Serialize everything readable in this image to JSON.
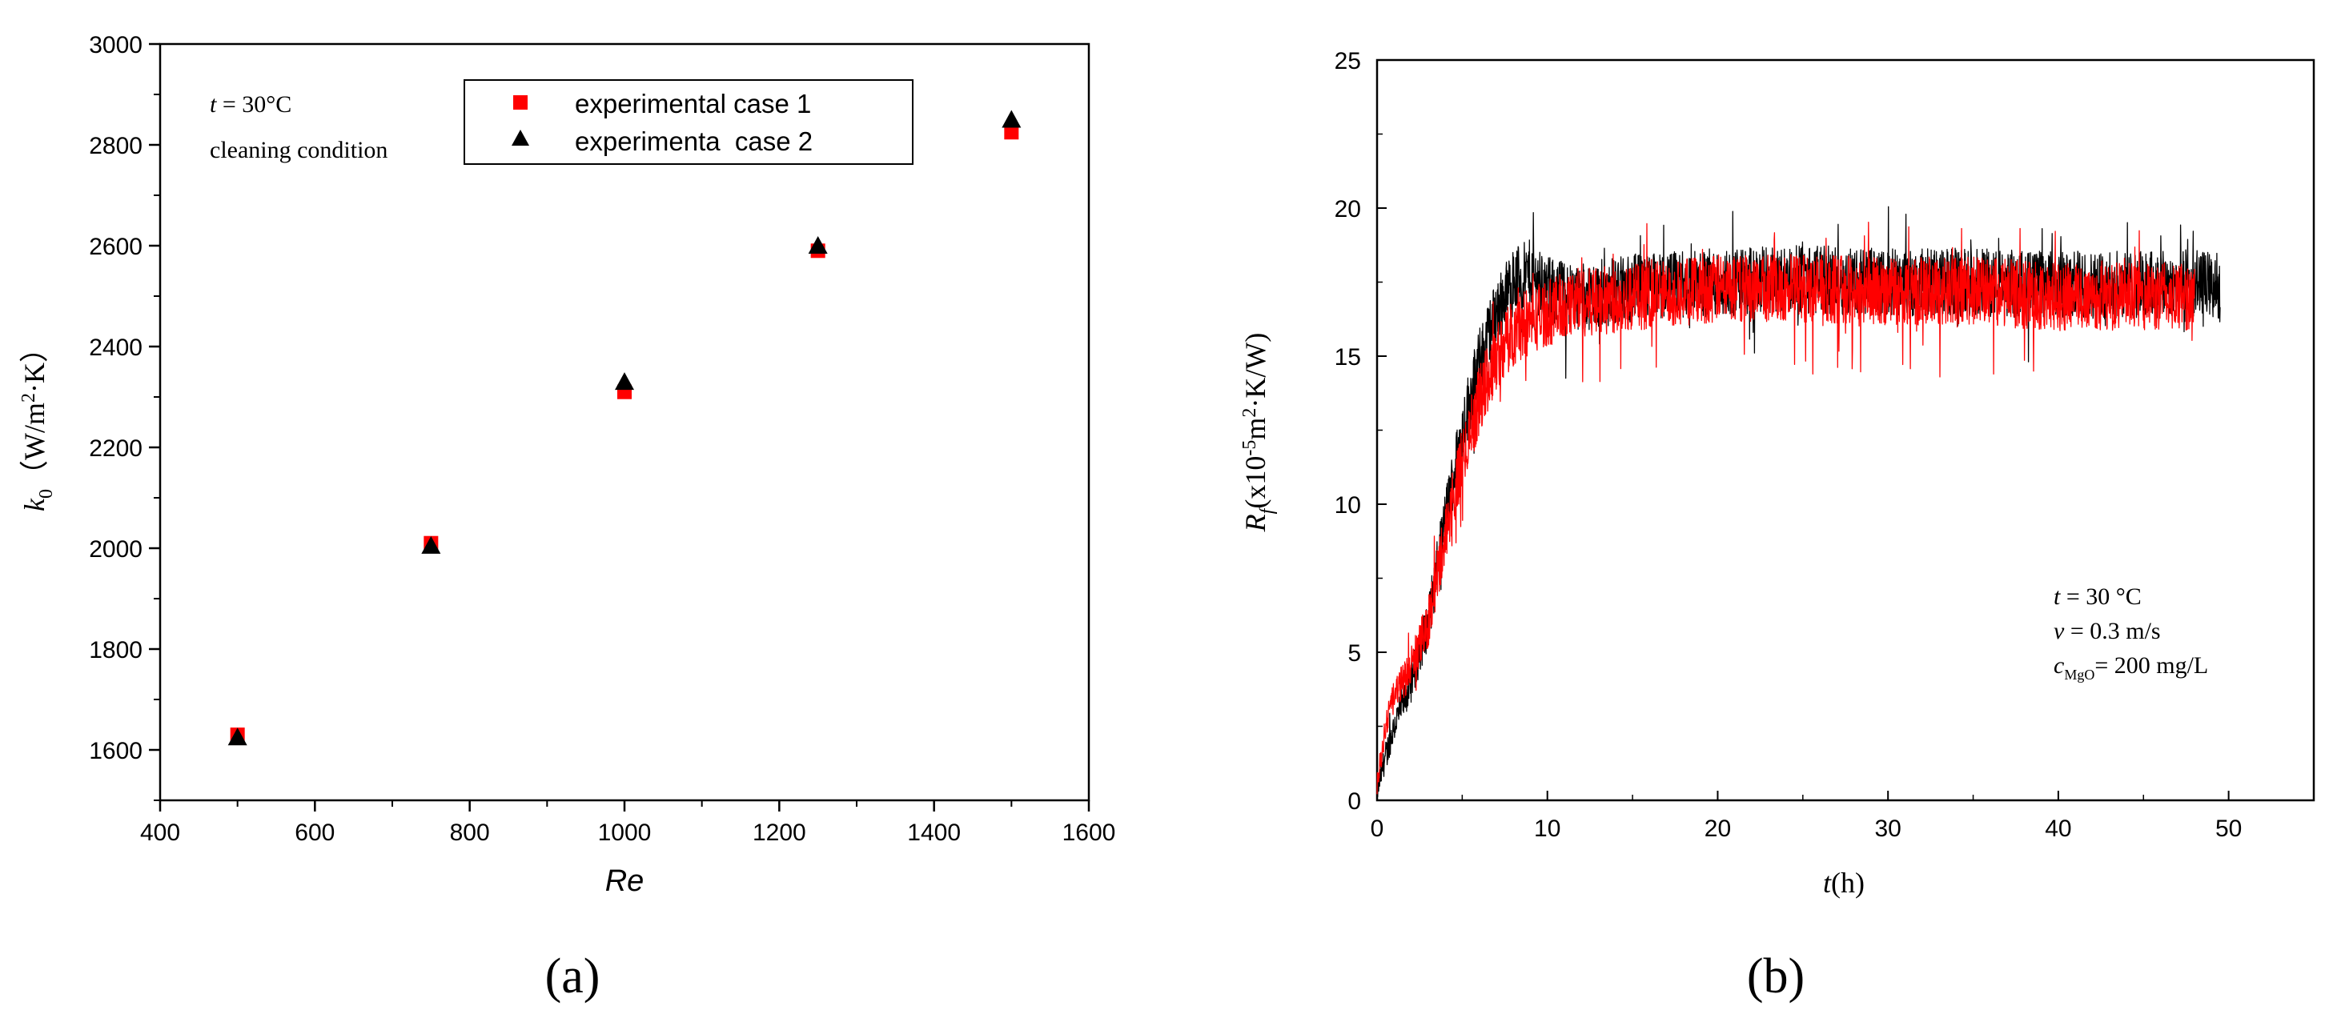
{
  "figure": {
    "panel_a_label": "(a)",
    "panel_b_label": "(b)"
  },
  "panel_a": {
    "annotations": {
      "temp": "t = 30°C",
      "temp_var": "t",
      "temp_rest": " = 30°C",
      "condition": "cleaning condition"
    }
  },
  "panel_b": {
    "annotations": {
      "temp_var": "t",
      "temp_rest": " = 30 °C",
      "velocity_var": "v",
      "velocity_rest": " = 0.3 m/s",
      "conc_var": "c",
      "conc_sub": "MgO",
      "conc_rest": "= 200 mg/L"
    }
  },
  "chart_data": [
    {
      "type": "scatter",
      "title": "",
      "xlabel": "Re",
      "ylabel": "k0（W/m2·K）",
      "ylabel_parts": {
        "sym": "k",
        "sub": "0",
        "unit_pre": "（W/m",
        "sup": "2",
        "unit_post": "·K）"
      },
      "xlim": [
        400,
        1600
      ],
      "ylim": [
        1500,
        3000
      ],
      "xticks": [
        400,
        600,
        800,
        1000,
        1200,
        1400,
        1600
      ],
      "yticks": [
        1600,
        1800,
        2000,
        2200,
        2400,
        2600,
        2800,
        3000
      ],
      "grid": false,
      "legend": "top-center",
      "series": [
        {
          "name": "experimental case 1",
          "marker": "square",
          "color": "#ff0000",
          "x": [
            500,
            750,
            1000,
            1250,
            1500
          ],
          "y": [
            1630,
            2010,
            2310,
            2590,
            2825
          ]
        },
        {
          "name": "experimenta  case 2",
          "marker": "triangle",
          "color": "#000000",
          "x": [
            500,
            750,
            1000,
            1250,
            1500
          ],
          "y": [
            1625,
            2005,
            2330,
            2600,
            2850
          ]
        }
      ]
    },
    {
      "type": "line",
      "title": "",
      "xlabel": "t(h)",
      "xlabel_parts": {
        "var": "t",
        "rest": "(h)"
      },
      "ylabel": "Rf(x10-5m2·K/W)",
      "ylabel_parts": {
        "sym": "R",
        "sub": "f",
        "a": "(x10",
        "sup1": "-5",
        "b": "m",
        "sup2": "2",
        "c": "·K/W)"
      },
      "xlim": [
        0,
        55
      ],
      "ylim": [
        0,
        25
      ],
      "xticks": [
        0,
        10,
        20,
        30,
        40,
        50
      ],
      "yticks": [
        0,
        5,
        10,
        15,
        20,
        25
      ],
      "grid": false,
      "legend": "none",
      "series": [
        {
          "color": "#000000",
          "t": [
            0,
            0.5,
            1,
            2,
            3,
            4,
            5,
            6,
            7,
            8,
            9,
            10,
            12,
            15,
            20,
            25,
            30,
            35,
            40,
            45,
            48,
            49.5
          ],
          "mean": [
            0.3,
            1.5,
            2.5,
            4.0,
            6.0,
            9.5,
            12.5,
            14.8,
            16.5,
            17.5,
            17.8,
            17.2,
            17.0,
            17.3,
            17.5,
            17.6,
            17.5,
            17.5,
            17.4,
            17.4,
            17.5,
            17.3
          ],
          "noise": 1.0
        },
        {
          "color": "#ff0000",
          "t": [
            0,
            0.5,
            1,
            2,
            3,
            4,
            5,
            6,
            7,
            8,
            9,
            10,
            12,
            15,
            20,
            25,
            30,
            35,
            40,
            45,
            48
          ],
          "mean": [
            0.5,
            2.5,
            3.5,
            4.5,
            6.0,
            9.0,
            11.5,
            13.5,
            15.0,
            15.8,
            16.2,
            16.5,
            16.8,
            17.0,
            17.3,
            17.3,
            17.2,
            17.2,
            17.0,
            17.0,
            17.0
          ],
          "noise": 1.0
        }
      ]
    }
  ]
}
